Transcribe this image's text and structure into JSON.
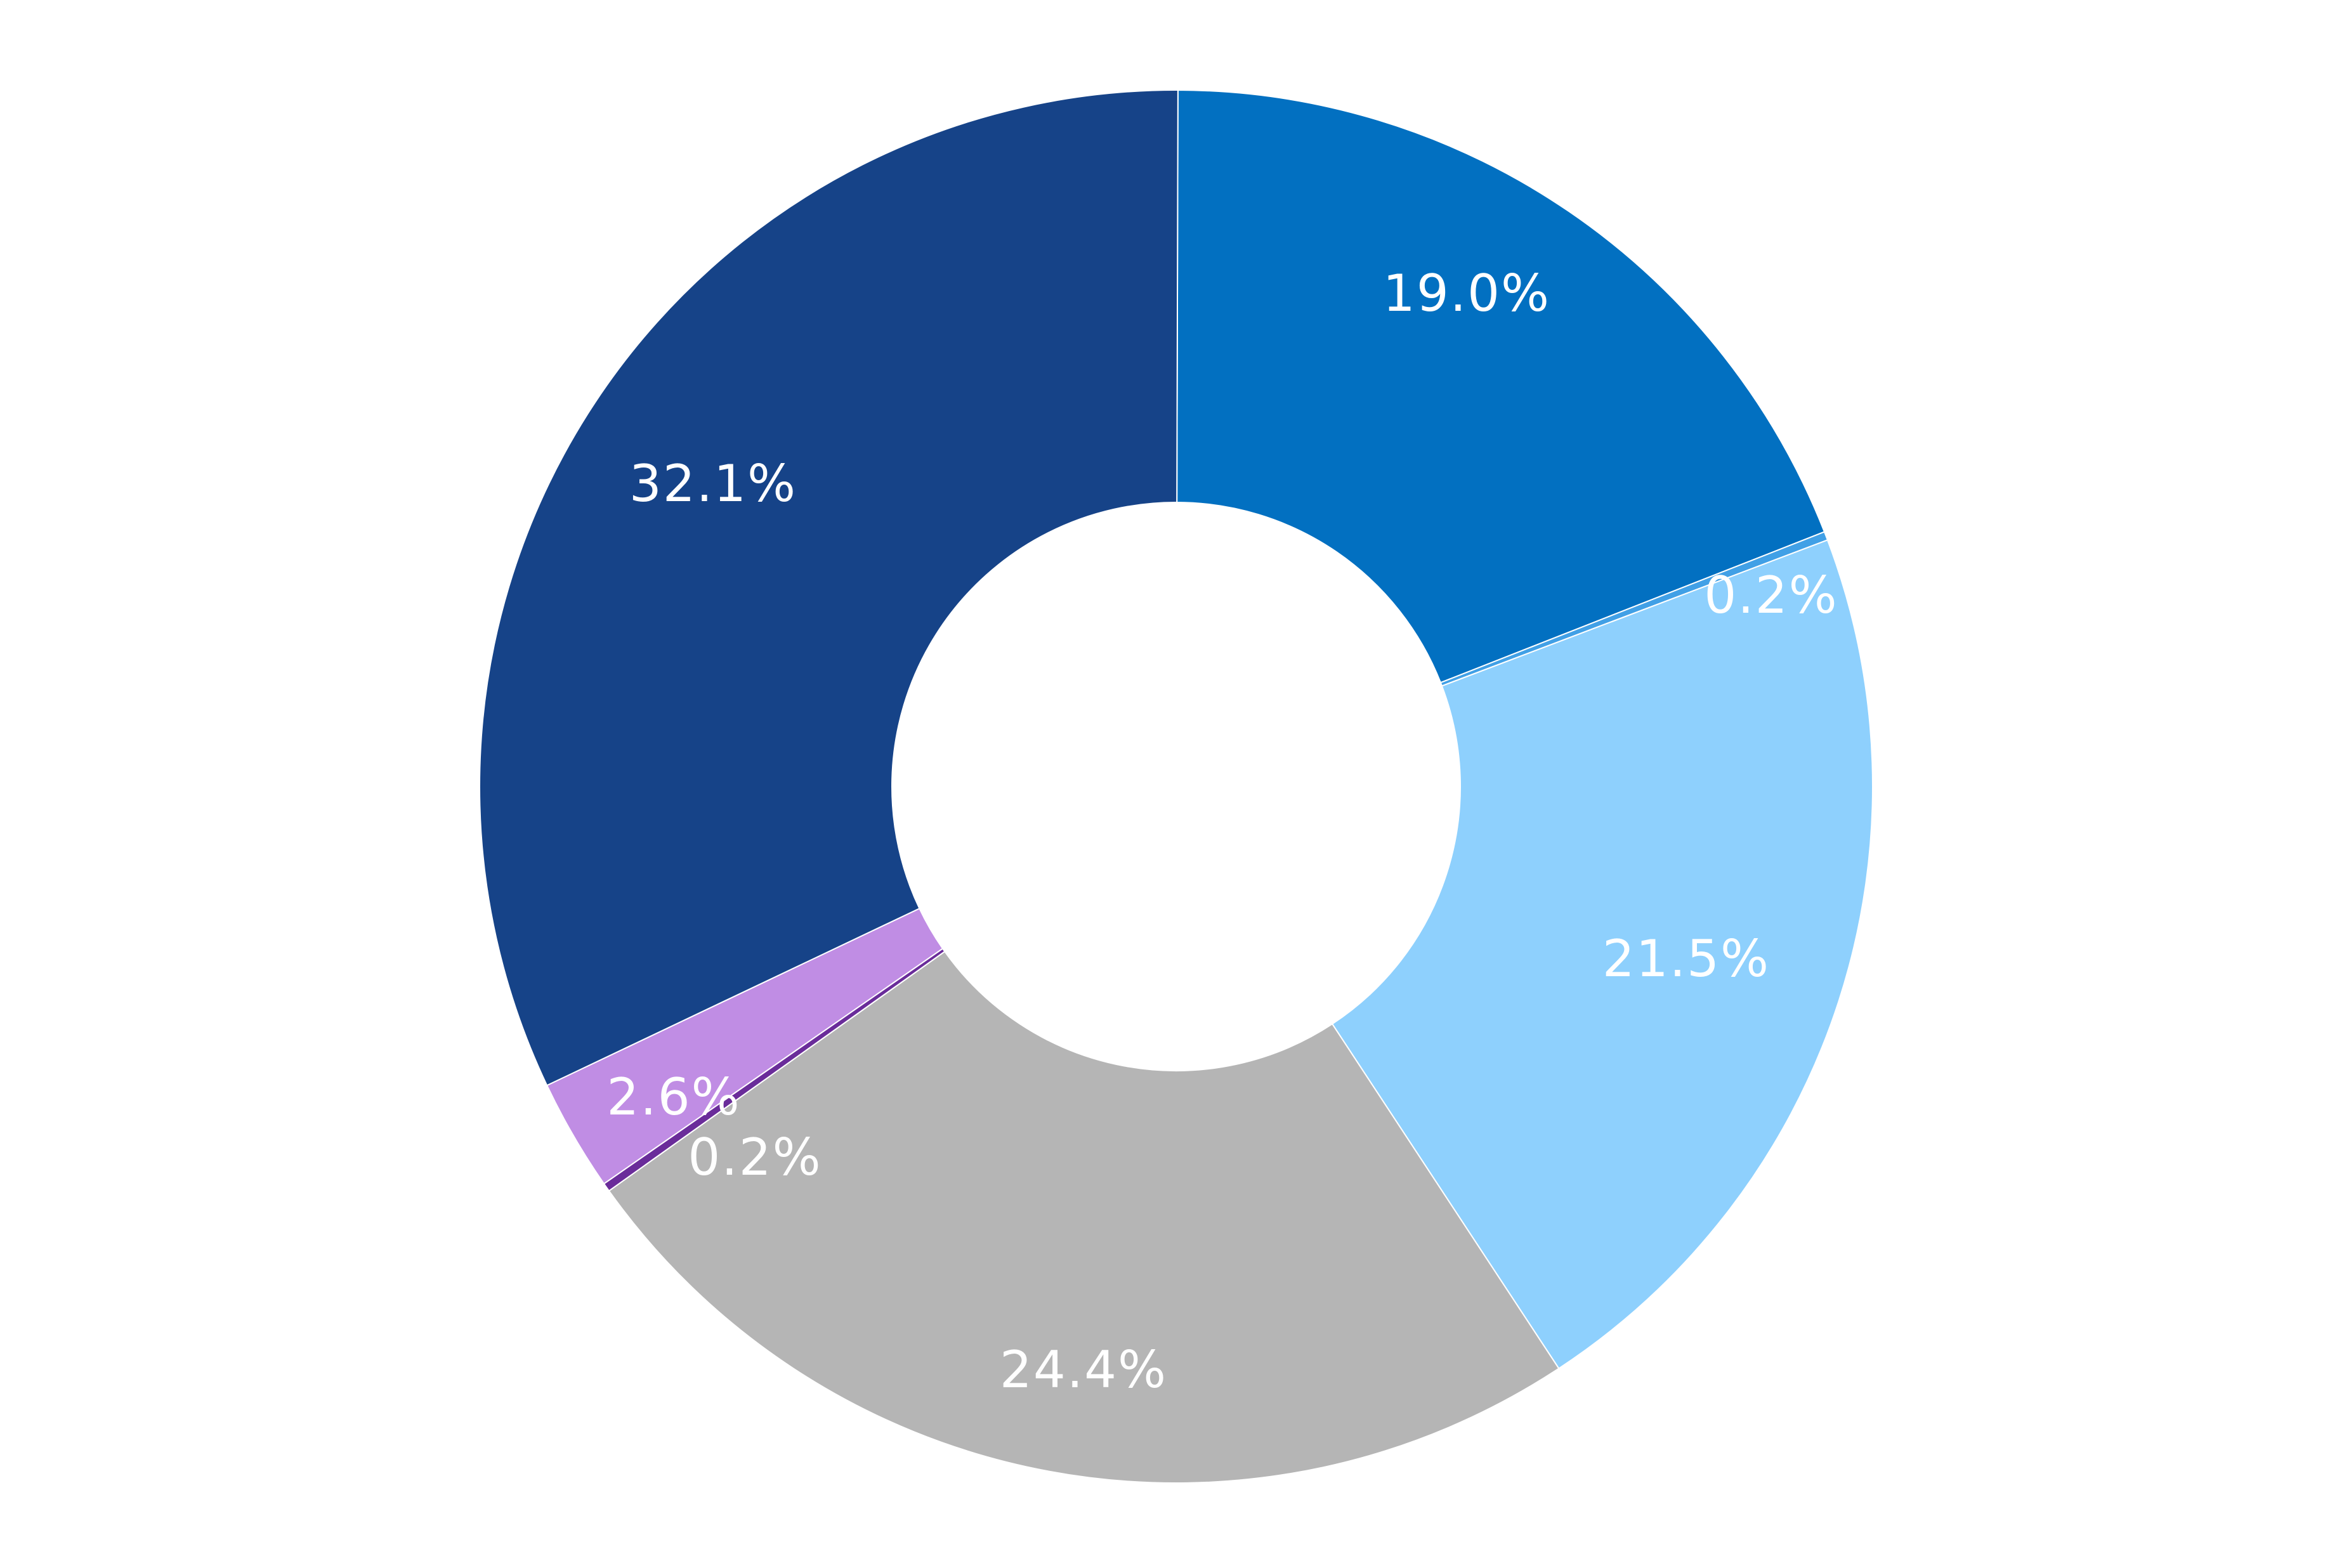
{
  "chart_data": {
    "type": "pie",
    "donut": true,
    "title": "",
    "legend": "none",
    "slices": [
      {
        "label": "19.0%",
        "value": 19.0,
        "color": "#0270c1"
      },
      {
        "label": "0.2%",
        "value": 0.2,
        "color": "#41a0e6"
      },
      {
        "label": "21.5%",
        "value": 21.5,
        "color": "#8ed0fd"
      },
      {
        "label": "24.4%",
        "value": 24.4,
        "color": "#b5b5b5"
      },
      {
        "label": "0.2%",
        "value": 0.2,
        "color": "#6a2c9a"
      },
      {
        "label": "2.6%",
        "value": 2.6,
        "color": "#c08de4"
      },
      {
        "label": "32.1%",
        "value": 32.1,
        "color": "#164388"
      }
    ]
  }
}
